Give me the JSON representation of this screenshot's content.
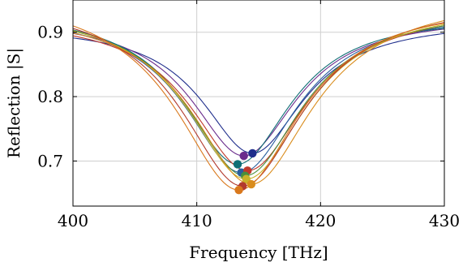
{
  "chart_data": {
    "type": "line",
    "xlabel": "Frequency [THz]",
    "ylabel": "Reflection |S|",
    "xlim": [
      400,
      430
    ],
    "ylim": [
      0.63,
      0.95
    ],
    "grid": true,
    "x_ticks": [
      400,
      410,
      420,
      430
    ],
    "x_tick_labels": [
      "400",
      "410",
      "420",
      "430"
    ],
    "y_ticks": [
      0.7,
      0.8,
      0.9
    ],
    "y_tick_labels": [
      "0.7",
      "0.8",
      "0.9"
    ],
    "series": [
      {
        "color": "#1f2e8c",
        "center": 414.5,
        "min": 0.712,
        "width": 5.0,
        "end_left": 0.89,
        "end_right": 0.898
      },
      {
        "color": "#6a2c8c",
        "center": 413.8,
        "min": 0.708,
        "width": 5.2,
        "end_left": 0.893,
        "end_right": 0.905
      },
      {
        "color": "#0f6e75",
        "center": 413.3,
        "min": 0.695,
        "width": 5.3,
        "end_left": 0.895,
        "end_right": 0.906
      },
      {
        "color": "#2a5f9e",
        "center": 413.6,
        "min": 0.682,
        "width": 5.5,
        "end_left": 0.892,
        "end_right": 0.908
      },
      {
        "color": "#c0392b",
        "center": 414.1,
        "min": 0.685,
        "width": 5.6,
        "end_left": 0.89,
        "end_right": 0.91
      },
      {
        "color": "#4a8f3c",
        "center": 413.9,
        "min": 0.677,
        "width": 5.6,
        "end_left": 0.897,
        "end_right": 0.91
      },
      {
        "color": "#c9b32a",
        "center": 414.0,
        "min": 0.672,
        "width": 5.8,
        "end_left": 0.898,
        "end_right": 0.912
      },
      {
        "color": "#d98c1c",
        "center": 414.4,
        "min": 0.664,
        "width": 5.9,
        "end_left": 0.896,
        "end_right": 0.918
      },
      {
        "color": "#b23a2e",
        "center": 413.7,
        "min": 0.661,
        "width": 6.0,
        "end_left": 0.899,
        "end_right": 0.915
      },
      {
        "color": "#d9781c",
        "center": 413.4,
        "min": 0.655,
        "width": 6.1,
        "end_left": 0.901,
        "end_right": 0.914
      }
    ]
  }
}
